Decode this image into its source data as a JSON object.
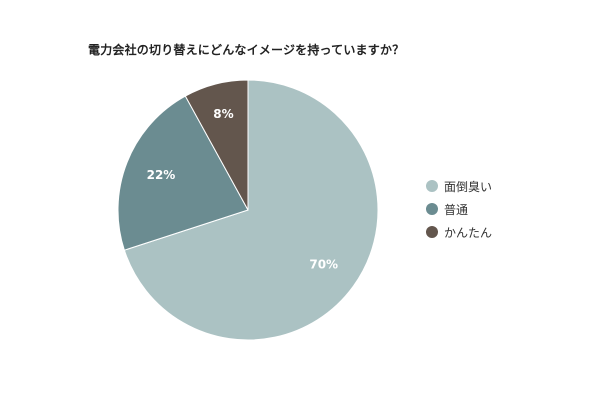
{
  "chart_data": {
    "type": "pie",
    "title": "電力会社の切り替えにどんなイメージを持っていますか？",
    "categories": [
      "面倒臭い",
      "普通",
      "かんたん"
    ],
    "values": [
      70,
      22,
      8
    ],
    "labels": [
      "70%",
      "22%",
      "8%"
    ],
    "colors": [
      "#abc2c3",
      "#6b8c91",
      "#63564d"
    ],
    "legend_position": "right"
  }
}
